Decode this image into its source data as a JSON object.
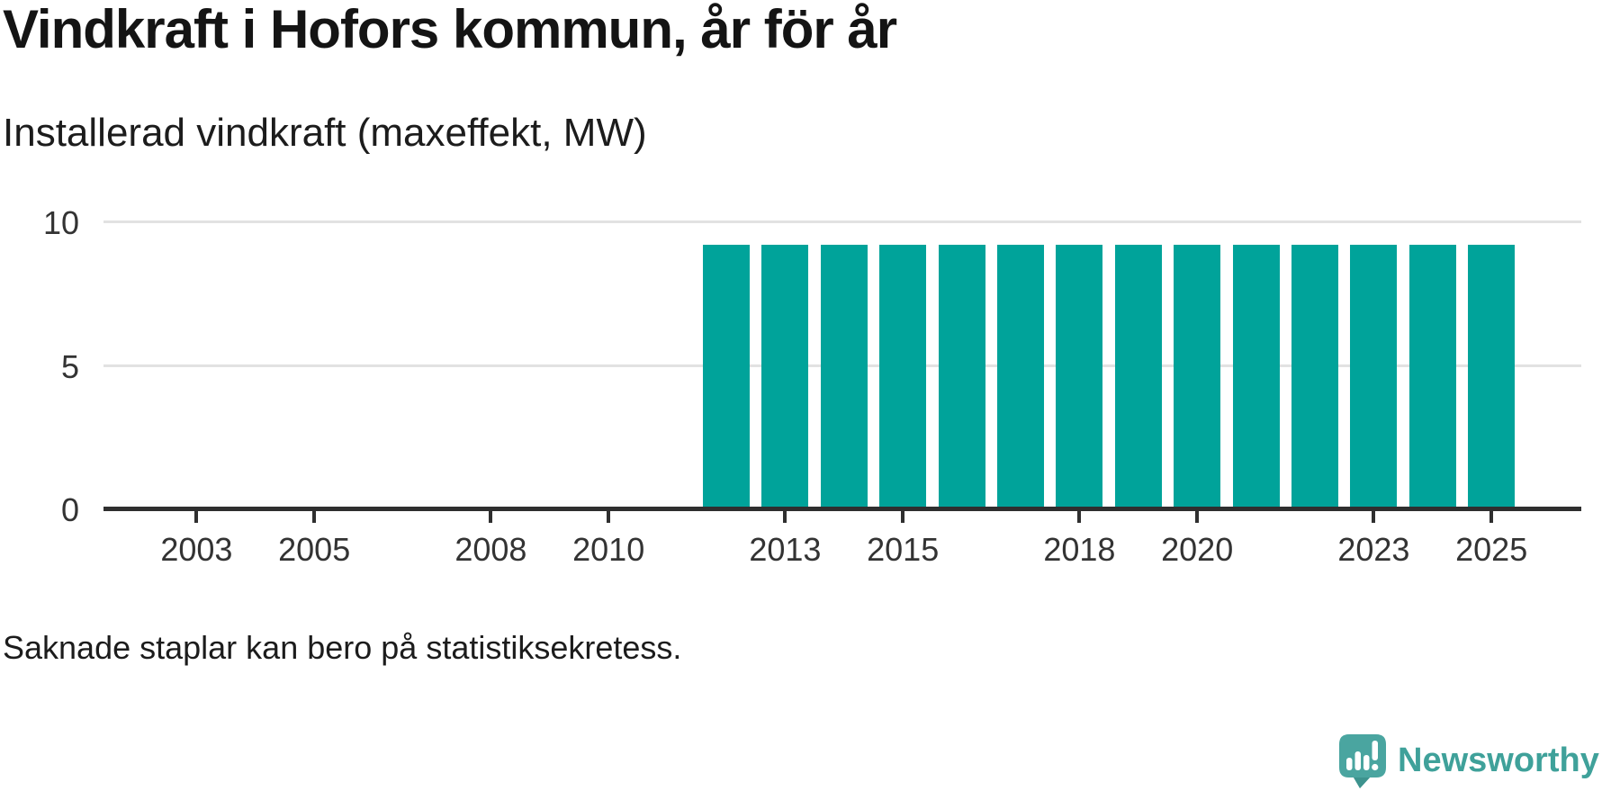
{
  "header": {
    "title": "Vindkraft i Hofors kommun, år för år",
    "subtitle": "Installerad vindkraft (maxeffekt, MW)"
  },
  "chart_data": {
    "type": "bar",
    "title": "Vindkraft i Hofors kommun, år för år",
    "subtitle": "Installerad vindkraft (maxeffekt, MW)",
    "unit": "MW",
    "categories": [
      2002,
      2003,
      2004,
      2005,
      2006,
      2007,
      2008,
      2009,
      2010,
      2011,
      2012,
      2013,
      2014,
      2015,
      2016,
      2017,
      2018,
      2019,
      2020,
      2021,
      2022,
      2023,
      2024,
      2025
    ],
    "values": [
      null,
      null,
      null,
      null,
      null,
      null,
      null,
      null,
      null,
      null,
      9.2,
      9.2,
      9.2,
      9.2,
      9.2,
      9.2,
      9.2,
      9.2,
      9.2,
      9.2,
      9.2,
      9.2,
      9.2,
      9.2
    ],
    "xlabel": "",
    "ylabel": "",
    "ylim": [
      0,
      10
    ],
    "y_ticks": [
      0,
      5,
      10
    ],
    "x_tick_years": [
      2003,
      2005,
      2008,
      2010,
      2013,
      2015,
      2018,
      2020,
      2023,
      2025
    ],
    "grid": "horizontal",
    "legend": "none",
    "bar_color": "#00a39a"
  },
  "footer": {
    "note": "Saknade staplar kan bero på statistiksekretess.",
    "brand": "Newsworthy"
  },
  "colors": {
    "bar": "#00a39a",
    "axis": "#2f2f2f",
    "gridline": "#e2e2e2",
    "brand_teal": "#3fa19a",
    "logo_bubble": "#4aa5a0",
    "logo_tail": "#3d938e"
  }
}
